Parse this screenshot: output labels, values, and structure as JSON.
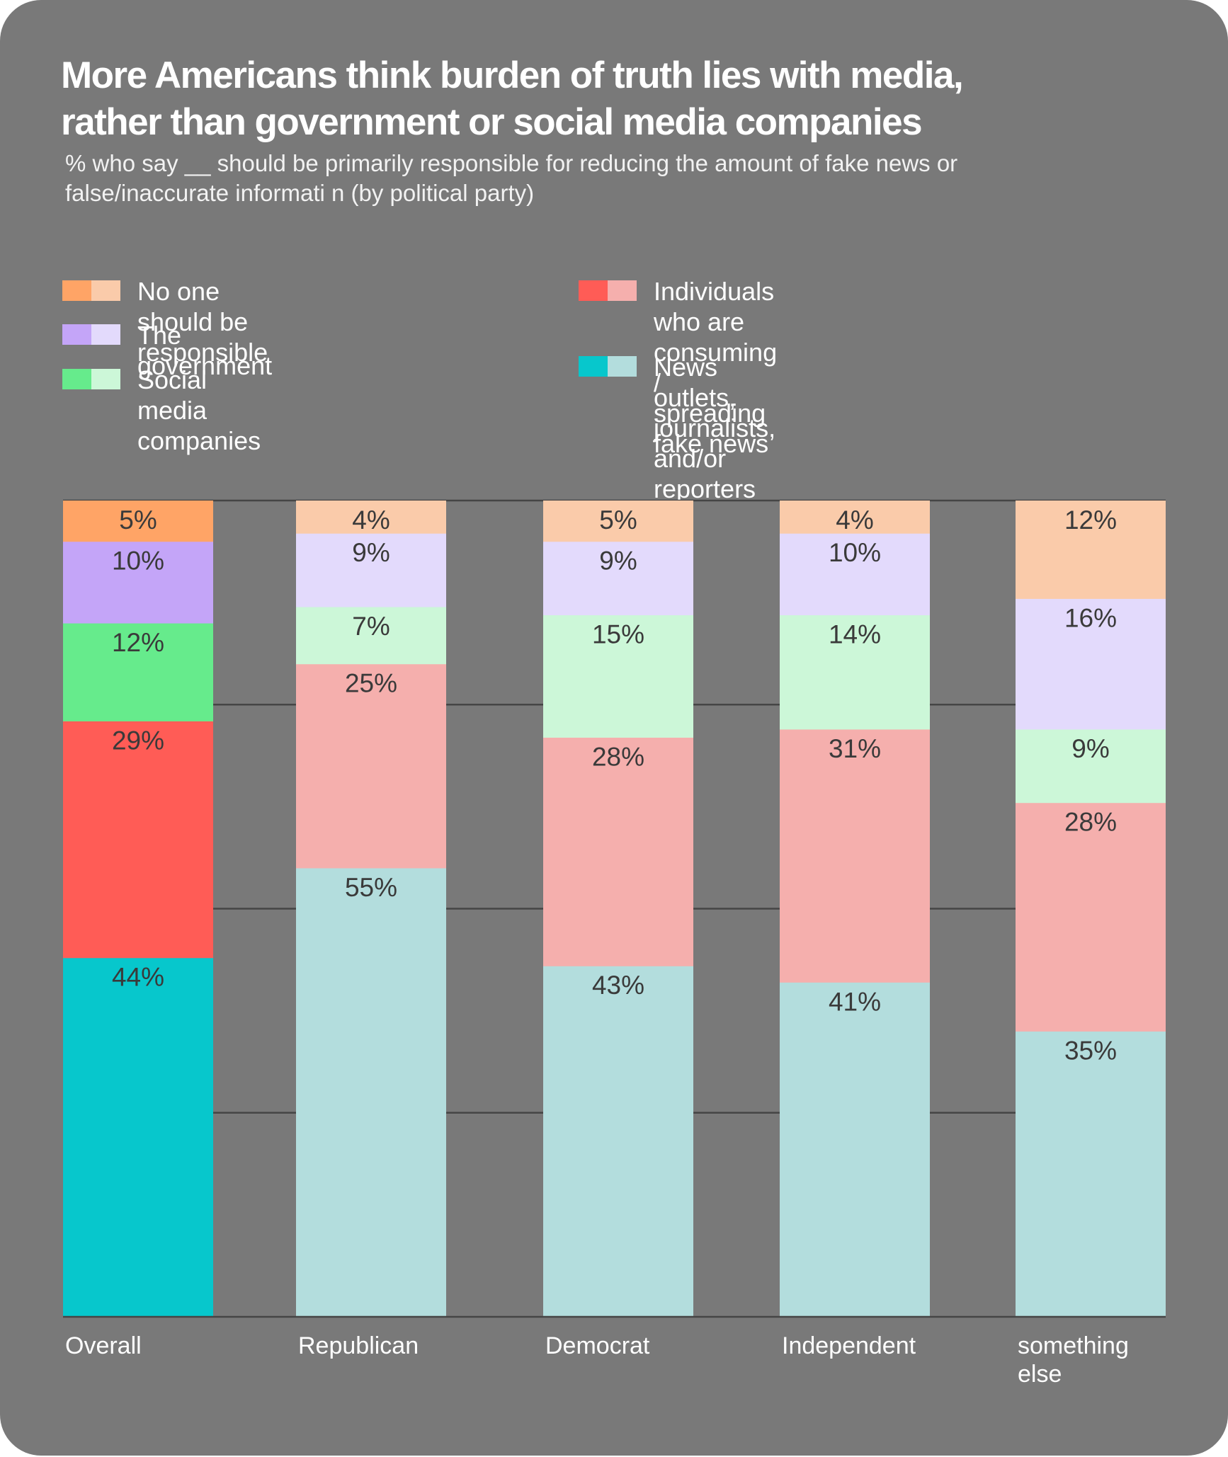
{
  "title": {
    "line1": "More Americans think burden of truth lies with media,",
    "line2": "rather than government or social media companies"
  },
  "subtitle": {
    "line1": "% who say __ should be primarily responsible for reducing the amount of fake news or",
    "line2": "false/inaccurate informati n (by political party)"
  },
  "legend": [
    {
      "key": "no_one",
      "lines": [
        "No one should be responsible"
      ],
      "strong": "#FFA466",
      "light": "#FACBAA"
    },
    {
      "key": "government",
      "lines": [
        "The government"
      ],
      "strong": "#C4A5F8",
      "light": "#E3DAFC"
    },
    {
      "key": "social",
      "lines": [
        "Social media companies"
      ],
      "strong": "#66EB8C",
      "light": "#CCF7D8"
    },
    {
      "key": "individuals",
      "lines": [
        "Individuals who are consuming /",
        "spreading fake news"
      ],
      "strong": "#FF5C56",
      "light": "#F5AFAD"
    },
    {
      "key": "news",
      "lines": [
        "News outlets, journalists, and/or reporters"
      ],
      "strong": "#07C7CC",
      "light": "#B3DDDD"
    }
  ],
  "chart_data": {
    "type": "bar",
    "stacked": true,
    "orientation": "vertical",
    "categories": [
      [
        "Overall"
      ],
      [
        "Republican"
      ],
      [
        "Democrat"
      ],
      [
        "Independent"
      ],
      [
        "something",
        "else"
      ]
    ],
    "ylim": [
      0,
      100
    ],
    "gridlines": [
      25,
      50,
      75,
      100
    ],
    "highlight_category_index": 0,
    "value_suffix": "%",
    "series": [
      {
        "key": "no_one",
        "values": [
          5,
          4,
          5,
          4,
          12
        ]
      },
      {
        "key": "government",
        "values": [
          10,
          9,
          9,
          10,
          16
        ]
      },
      {
        "key": "social",
        "values": [
          12,
          7,
          15,
          14,
          9
        ]
      },
      {
        "key": "individuals",
        "values": [
          29,
          25,
          28,
          31,
          28
        ]
      },
      {
        "key": "news",
        "values": [
          44,
          55,
          43,
          41,
          35
        ]
      }
    ],
    "label_color": "#3a3a3a",
    "grid_color": "#454545"
  }
}
